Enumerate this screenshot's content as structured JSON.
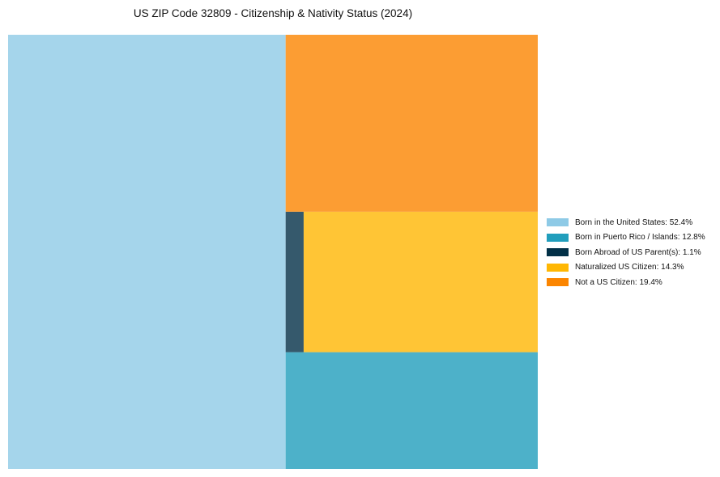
{
  "chart_data": {
    "type": "treemap",
    "title": "US ZIP Code 32809 - Citizenship & Nativity Status (2024)",
    "categories": [
      "Born in the United States",
      "Born in Puerto Rico / Islands",
      "Born Abroad of US Parent(s)",
      "Naturalized US Citizen",
      "Not a US Citizen"
    ],
    "values": [
      52.4,
      12.8,
      1.1,
      14.3,
      19.4
    ],
    "colors": [
      "#8ecae6",
      "#219ebc",
      "#023047",
      "#ffb703",
      "#fb8500"
    ],
    "tile_opacity": 0.8,
    "legend": [
      "Born in the United States: 52.4%",
      "Born in Puerto Rico / Islands: 12.8%",
      "Born Abroad of US Parent(s): 1.1%",
      "Naturalized US Citizen: 14.3%",
      "Not a US Citizen: 19.4%"
    ],
    "legend_position": "right"
  }
}
